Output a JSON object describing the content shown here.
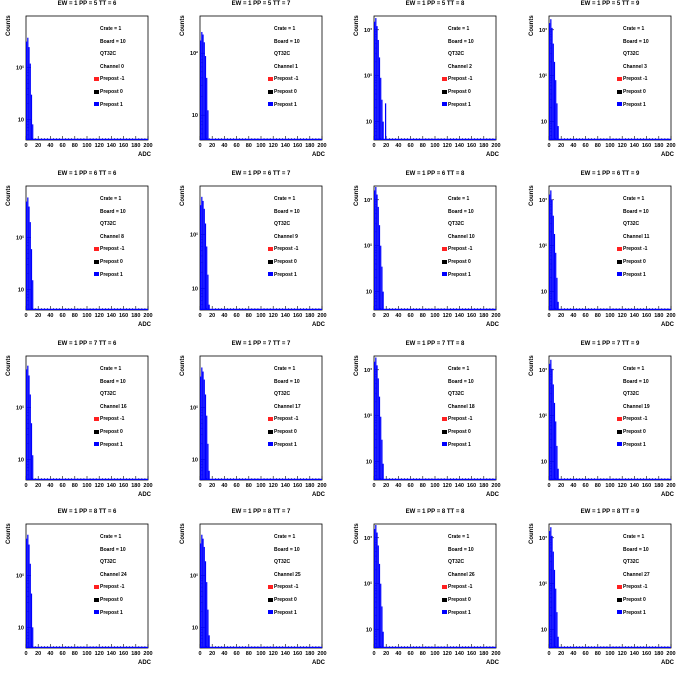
{
  "chart_data": [
    {
      "type": "bar",
      "title": "EW = 1 PP = 5 TT = 6",
      "xlabel": "ADC",
      "ylabel": "Counts",
      "xlim": [
        0,
        200
      ],
      "log_y": true,
      "yticks": [
        "10",
        "10²"
      ],
      "ymax": 3.0,
      "legend": [
        "Crate = 1",
        "Board = 10",
        "QT32C",
        "Channel 0",
        "Prepost -1",
        "Prepost 0",
        "Prepost 1"
      ],
      "series": [
        {
          "name": "Prepost 1",
          "color": "#0000ff",
          "x": [
            0,
            2,
            4,
            6,
            8,
            10,
            12,
            14,
            16,
            18,
            20
          ],
          "y": [
            320,
            380,
            250,
            120,
            30,
            8,
            2,
            0,
            0,
            0,
            0
          ]
        }
      ]
    },
    {
      "type": "bar",
      "title": "EW = 1 PP = 5 TT = 7",
      "xlabel": "ADC",
      "ylabel": "Counts",
      "xlim": [
        0,
        200
      ],
      "log_y": true,
      "yticks": [
        "10",
        "10²"
      ],
      "ymax": 2.6,
      "legend": [
        "Crate = 1",
        "Board = 10",
        "QT32C",
        "Channel 1",
        "Prepost -1",
        "Prepost 0",
        "Prepost 1"
      ],
      "series": [
        {
          "name": "Prepost 1",
          "color": "#0000ff",
          "x": [
            0,
            2,
            4,
            6,
            8,
            10,
            12,
            14,
            16,
            18,
            20
          ],
          "y": [
            160,
            220,
            200,
            150,
            90,
            40,
            12,
            4,
            1,
            0,
            0
          ]
        }
      ]
    },
    {
      "type": "bar",
      "title": "EW = 1 PP = 5 TT = 8",
      "xlabel": "ADC",
      "ylabel": "Counts",
      "xlim": [
        0,
        200
      ],
      "log_y": true,
      "yticks": [
        "10",
        "10²",
        "10³"
      ],
      "ymax": 3.3,
      "legend": [
        "Crate = 1",
        "Board = 10",
        "QT32C",
        "Channel 2",
        "Prepost -1",
        "Prepost 0",
        "Prepost 1"
      ],
      "series": [
        {
          "name": "Prepost 1",
          "color": "#0000ff",
          "x": [
            0,
            2,
            4,
            6,
            8,
            10,
            12,
            14,
            16,
            18,
            20
          ],
          "y": [
            1500,
            1800,
            1200,
            600,
            250,
            90,
            30,
            10,
            3,
            25,
            0
          ]
        }
      ]
    },
    {
      "type": "bar",
      "title": "EW = 1 PP = 5 TT = 9",
      "xlabel": "ADC",
      "ylabel": "Counts",
      "xlim": [
        0,
        200
      ],
      "log_y": true,
      "yticks": [
        "10",
        "10²",
        "10³"
      ],
      "ymax": 3.3,
      "legend": [
        "Crate = 1",
        "Board = 10",
        "QT32C",
        "Channel 3",
        "Prepost -1",
        "Prepost 0",
        "Prepost 1"
      ],
      "series": [
        {
          "name": "Prepost 1",
          "color": "#0000ff",
          "x": [
            0,
            2,
            4,
            6,
            8,
            10,
            12,
            14,
            16,
            18,
            20
          ],
          "y": [
            1400,
            1700,
            1100,
            500,
            200,
            80,
            25,
            8,
            2,
            0,
            0
          ]
        }
      ]
    },
    {
      "type": "bar",
      "title": "EW = 1 PP = 6 TT = 6",
      "xlabel": "ADC",
      "ylabel": "Counts",
      "xlim": [
        0,
        200
      ],
      "log_y": true,
      "yticks": [
        "10",
        "10²"
      ],
      "ymax": 3.0,
      "legend": [
        "Crate = 1",
        "Board = 10",
        "QT32C",
        "Channel 8",
        "Prepost -1",
        "Prepost 0",
        "Prepost 1"
      ],
      "series": [
        {
          "name": "Prepost 1",
          "color": "#0000ff",
          "x": [
            0,
            2,
            4,
            6,
            8,
            10,
            12,
            14,
            16,
            18,
            20
          ],
          "y": [
            500,
            600,
            400,
            200,
            60,
            15,
            3,
            0,
            0,
            0,
            0
          ]
        }
      ]
    },
    {
      "type": "bar",
      "title": "EW = 1 PP = 6 TT = 7",
      "xlabel": "ADC",
      "ylabel": "Counts",
      "xlim": [
        0,
        200
      ],
      "log_y": true,
      "yticks": [
        "10",
        "10²"
      ],
      "ymax": 2.9,
      "legend": [
        "Crate = 1",
        "Board = 10",
        "QT32C",
        "Channel 9",
        "Prepost -1",
        "Prepost 0",
        "Prepost 1"
      ],
      "series": [
        {
          "name": "Prepost 1",
          "color": "#0000ff",
          "x": [
            0,
            2,
            4,
            6,
            8,
            10,
            12,
            14,
            16,
            18,
            20
          ],
          "y": [
            350,
            500,
            420,
            300,
            160,
            60,
            18,
            5,
            1,
            0,
            0
          ]
        }
      ]
    },
    {
      "type": "bar",
      "title": "EW = 1 PP = 6 TT = 8",
      "xlabel": "ADC",
      "ylabel": "Counts",
      "xlim": [
        0,
        200
      ],
      "log_y": true,
      "yticks": [
        "10",
        "10²",
        "10³"
      ],
      "ymax": 3.3,
      "legend": [
        "Crate = 1",
        "Board = 10",
        "QT32C",
        "Channel 10",
        "Prepost -1",
        "Prepost 0",
        "Prepost 1"
      ],
      "series": [
        {
          "name": "Prepost 1",
          "color": "#0000ff",
          "x": [
            0,
            2,
            4,
            6,
            8,
            10,
            12,
            14,
            16,
            18,
            20
          ],
          "y": [
            1600,
            1900,
            1300,
            700,
            280,
            100,
            35,
            10,
            3,
            0,
            0
          ]
        }
      ]
    },
    {
      "type": "bar",
      "title": "EW = 1 PP = 6 TT = 9",
      "xlabel": "ADC",
      "ylabel": "Counts",
      "xlim": [
        0,
        200
      ],
      "log_y": true,
      "yticks": [
        "10",
        "10²",
        "10³"
      ],
      "ymax": 3.3,
      "legend": [
        "Crate = 1",
        "Board = 10",
        "QT32C",
        "Channel 11",
        "Prepost -1",
        "Prepost 0",
        "Prepost 1"
      ],
      "series": [
        {
          "name": "Prepost 1",
          "color": "#0000ff",
          "x": [
            0,
            2,
            4,
            6,
            8,
            10,
            12,
            14,
            16,
            18,
            20
          ],
          "y": [
            1300,
            1600,
            1000,
            450,
            180,
            70,
            20,
            6,
            2,
            0,
            0
          ]
        }
      ]
    },
    {
      "type": "bar",
      "title": "EW = 1 PP = 7 TT = 6",
      "xlabel": "ADC",
      "ylabel": "Counts",
      "xlim": [
        0,
        200
      ],
      "log_y": true,
      "yticks": [
        "10",
        "10²"
      ],
      "ymax": 3.0,
      "legend": [
        "Crate = 1",
        "Board = 10",
        "QT32C",
        "Channel 16",
        "Prepost -1",
        "Prepost 0",
        "Prepost 1"
      ],
      "series": [
        {
          "name": "Prepost 1",
          "color": "#0000ff",
          "x": [
            0,
            2,
            4,
            6,
            8,
            10,
            12,
            14,
            16,
            18,
            20
          ],
          "y": [
            550,
            650,
            420,
            180,
            50,
            12,
            3,
            0,
            0,
            0,
            0
          ]
        }
      ]
    },
    {
      "type": "bar",
      "title": "EW = 1 PP = 7 TT = 7",
      "xlabel": "ADC",
      "ylabel": "Counts",
      "xlim": [
        0,
        200
      ],
      "log_y": true,
      "yticks": [
        "10",
        "10²"
      ],
      "ymax": 3.0,
      "legend": [
        "Crate = 1",
        "Board = 10",
        "QT32C",
        "Channel 17",
        "Prepost -1",
        "Prepost 0",
        "Prepost 1"
      ],
      "series": [
        {
          "name": "Prepost 1",
          "color": "#0000ff",
          "x": [
            0,
            2,
            4,
            6,
            8,
            10,
            12,
            14,
            16,
            18,
            20
          ],
          "y": [
            400,
            600,
            500,
            350,
            180,
            70,
            20,
            6,
            1,
            0,
            0
          ]
        }
      ]
    },
    {
      "type": "bar",
      "title": "EW = 1 PP = 7 TT = 8",
      "xlabel": "ADC",
      "ylabel": "Counts",
      "xlim": [
        0,
        200
      ],
      "log_y": true,
      "yticks": [
        "10",
        "10²",
        "10³"
      ],
      "ymax": 3.3,
      "legend": [
        "Crate = 1",
        "Board = 10",
        "QT32C",
        "Channel 18",
        "Prepost -1",
        "Prepost 0",
        "Prepost 1"
      ],
      "series": [
        {
          "name": "Prepost 1",
          "color": "#0000ff",
          "x": [
            0,
            2,
            4,
            6,
            8,
            10,
            12,
            14,
            16,
            18,
            20
          ],
          "y": [
            1500,
            1850,
            1250,
            650,
            260,
            95,
            30,
            9,
            2,
            0,
            0
          ]
        }
      ]
    },
    {
      "type": "bar",
      "title": "EW = 1 PP = 7 TT = 9",
      "xlabel": "ADC",
      "ylabel": "Counts",
      "xlim": [
        0,
        200
      ],
      "log_y": true,
      "yticks": [
        "10",
        "10²",
        "10³"
      ],
      "ymax": 3.3,
      "legend": [
        "Crate = 1",
        "Board = 10",
        "QT32C",
        "Channel 19",
        "Prepost -1",
        "Prepost 0",
        "Prepost 1"
      ],
      "series": [
        {
          "name": "Prepost 1",
          "color": "#0000ff",
          "x": [
            0,
            2,
            4,
            6,
            8,
            10,
            12,
            14,
            16,
            18,
            20
          ],
          "y": [
            1350,
            1650,
            1050,
            480,
            190,
            75,
            22,
            7,
            2,
            0,
            0
          ]
        }
      ]
    },
    {
      "type": "bar",
      "title": "EW = 1 PP = 8 TT = 6",
      "xlabel": "ADC",
      "ylabel": "Counts",
      "xlim": [
        0,
        200
      ],
      "log_y": true,
      "yticks": [
        "10",
        "10²"
      ],
      "ymax": 3.0,
      "legend": [
        "Crate = 1",
        "Board = 10",
        "QT32C",
        "Channel 24",
        "Prepost -1",
        "Prepost 0",
        "Prepost 1"
      ],
      "series": [
        {
          "name": "Prepost 1",
          "color": "#0000ff",
          "x": [
            0,
            2,
            4,
            6,
            8,
            10,
            12,
            14,
            16,
            18,
            20
          ],
          "y": [
            520,
            620,
            400,
            170,
            45,
            10,
            2,
            0,
            0,
            0,
            0
          ]
        }
      ]
    },
    {
      "type": "bar",
      "title": "EW = 1 PP = 8 TT = 7",
      "xlabel": "ADC",
      "ylabel": "Counts",
      "xlim": [
        0,
        200
      ],
      "log_y": true,
      "yticks": [
        "10",
        "10²"
      ],
      "ymax": 3.0,
      "legend": [
        "Crate = 1",
        "Board = 10",
        "QT32C",
        "Channel 25",
        "Prepost -1",
        "Prepost 0",
        "Prepost 1"
      ],
      "series": [
        {
          "name": "Prepost 1",
          "color": "#0000ff",
          "x": [
            0,
            2,
            4,
            6,
            8,
            10,
            12,
            14,
            16,
            18,
            20
          ],
          "y": [
            420,
            620,
            520,
            360,
            190,
            75,
            22,
            7,
            1,
            0,
            0
          ]
        }
      ]
    },
    {
      "type": "bar",
      "title": "EW = 1 PP = 8 TT = 8",
      "xlabel": "ADC",
      "ylabel": "Counts",
      "xlim": [
        0,
        200
      ],
      "log_y": true,
      "yticks": [
        "10",
        "10²",
        "10³"
      ],
      "ymax": 3.3,
      "legend": [
        "Crate = 1",
        "Board = 10",
        "QT32C",
        "Channel 26",
        "Prepost -1",
        "Prepost 0",
        "Prepost 1"
      ],
      "series": [
        {
          "name": "Prepost 1",
          "color": "#0000ff",
          "x": [
            0,
            2,
            4,
            6,
            8,
            10,
            12,
            14,
            16,
            18,
            20
          ],
          "y": [
            1550,
            1900,
            1300,
            680,
            270,
            100,
            32,
            9,
            2,
            0,
            0
          ]
        }
      ]
    },
    {
      "type": "bar",
      "title": "EW = 1 PP = 8 TT = 9",
      "xlabel": "ADC",
      "ylabel": "Counts",
      "xlim": [
        0,
        200
      ],
      "log_y": true,
      "yticks": [
        "10",
        "10²",
        "10³"
      ],
      "ymax": 3.3,
      "legend": [
        "Crate = 1",
        "Board = 10",
        "QT32C",
        "Channel 27",
        "Prepost -1",
        "Prepost 0",
        "Prepost 1"
      ],
      "series": [
        {
          "name": "Prepost 1",
          "color": "#0000ff",
          "x": [
            0,
            2,
            4,
            6,
            8,
            10,
            12,
            14,
            16,
            18,
            20
          ],
          "y": [
            1400,
            1700,
            1100,
            500,
            200,
            78,
            24,
            7,
            2,
            0,
            0
          ]
        }
      ]
    }
  ],
  "xticks": [
    "0",
    "20",
    "40",
    "60",
    "80",
    "100",
    "120",
    "140",
    "160",
    "180",
    "200"
  ],
  "legend_colors": [
    "#ff2020",
    "#000000",
    "#0000ff"
  ]
}
